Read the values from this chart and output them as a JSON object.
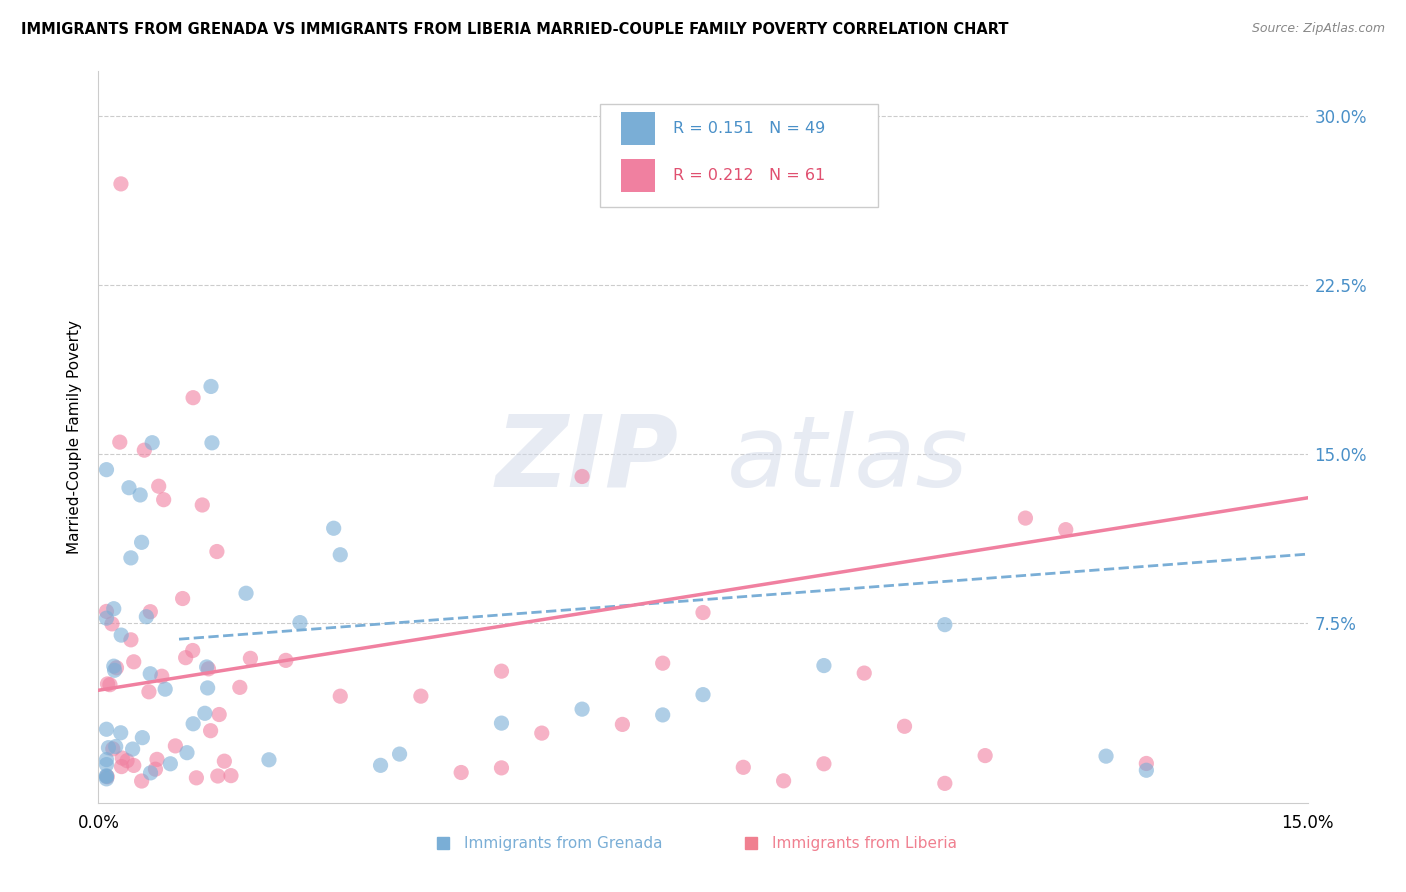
{
  "title": "IMMIGRANTS FROM GRENADA VS IMMIGRANTS FROM LIBERIA MARRIED-COUPLE FAMILY POVERTY CORRELATION CHART",
  "source": "Source: ZipAtlas.com",
  "ylabel": "Married-Couple Family Poverty",
  "y_ticks": [
    0.075,
    0.15,
    0.225,
    0.3
  ],
  "y_tick_labels": [
    "7.5%",
    "15.0%",
    "22.5%",
    "30.0%"
  ],
  "x_lim": [
    0.0,
    0.15
  ],
  "y_lim": [
    -0.005,
    0.32
  ],
  "grenada_color": "#7aaed6",
  "liberia_color": "#f080a0",
  "grenada_R": 0.151,
  "grenada_N": 49,
  "liberia_R": 0.212,
  "liberia_N": 61,
  "grenada_legend_color": "#4a90c8",
  "liberia_legend_color": "#e05070",
  "right_tick_color": "#4a90c8",
  "bottom_legend_grenada_color": "#7aaed6",
  "bottom_legend_liberia_color": "#f08090"
}
